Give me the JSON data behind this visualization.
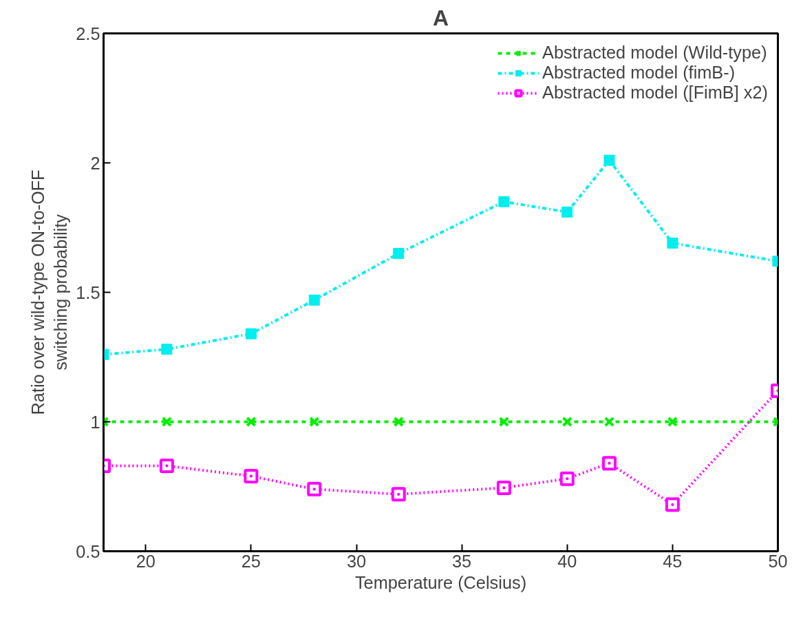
{
  "chart_data": {
    "type": "line",
    "title": "A",
    "xlabel": "Temperature (Celsius)",
    "ylabel": "Ratio over wild-type ON-to-OFF\nswitching probability",
    "x": [
      18,
      21,
      25,
      28,
      32,
      37,
      40,
      42,
      45,
      50
    ],
    "series": [
      {
        "name": "Abstracted model (Wild-type)",
        "color": "#00ee00",
        "line_style": "dashed",
        "marker": "cross",
        "values": [
          1,
          1,
          1,
          1,
          1,
          1,
          1,
          1,
          1,
          1
        ]
      },
      {
        "name": "Abstracted model (fimB-)",
        "color": "#00eeee",
        "line_style": "dashdot",
        "marker": "square",
        "values": [
          1.26,
          1.28,
          1.34,
          1.47,
          1.65,
          1.85,
          1.81,
          2.01,
          1.69,
          1.62
        ]
      },
      {
        "name": "Abstracted model ([FimB] x2)",
        "color": "#ff00ff",
        "line_style": "dotted",
        "marker": "square_dot",
        "values": [
          0.83,
          0.83,
          0.79,
          0.74,
          0.72,
          0.745,
          0.78,
          0.84,
          0.68,
          1.12
        ]
      }
    ],
    "xlim": [
      18,
      50
    ],
    "ylim": [
      0.5,
      2.5
    ],
    "xticks": [
      20,
      25,
      30,
      35,
      40,
      45,
      50
    ],
    "yticks": [
      0.5,
      1,
      1.5,
      2,
      2.5
    ],
    "grid": false,
    "legend": "top right"
  }
}
